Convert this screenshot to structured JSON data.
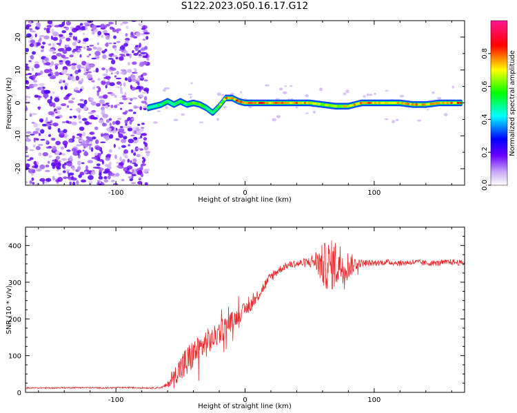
{
  "title": "S122.2023.050.16.17.G12",
  "chart_data": [
    {
      "type": "heatmap",
      "xlabel": "Height of straight line (km)",
      "ylabel": "Frequency (Hz)",
      "xlim": [
        -170,
        170
      ],
      "ylim": [
        -25,
        25
      ],
      "x_ticks": [
        -100,
        0,
        100
      ],
      "y_ticks": [
        -20,
        -10,
        0,
        10,
        20
      ],
      "grid": false,
      "colorbar": {
        "label": "Normalized spectral amplitude",
        "range": [
          0,
          1
        ],
        "ticks": [
          "0.0",
          "0.2",
          "0.4",
          "0.6",
          "0.8"
        ],
        "colors": [
          "#ffffff",
          "#8a2be2",
          "#0000ff",
          "#00ffff",
          "#00ff00",
          "#ffff00",
          "#ff0000",
          "#ff1493"
        ]
      },
      "noise_region_x": [
        -170,
        -75
      ],
      "ridge": {
        "x": [
          -75,
          -70,
          -65,
          -60,
          -55,
          -50,
          -45,
          -40,
          -35,
          -30,
          -25,
          -20,
          -15,
          -10,
          -5,
          0,
          10,
          20,
          30,
          40,
          50,
          60,
          70,
          80,
          90,
          100,
          110,
          120,
          130,
          140,
          150,
          160,
          168
        ],
        "y": [
          -1.5,
          -1,
          -0.5,
          0.5,
          -0.5,
          0.5,
          -0.5,
          0,
          -0.5,
          -1.5,
          -3,
          -1,
          1.5,
          1.5,
          0.5,
          0,
          0,
          0,
          0,
          0,
          0,
          -0.5,
          -1,
          -1,
          0,
          0,
          0,
          0,
          -0.5,
          -0.5,
          0,
          0,
          0
        ],
        "amp": [
          0.45,
          0.5,
          0.5,
          0.55,
          0.5,
          0.55,
          0.5,
          0.7,
          0.6,
          0.5,
          0.45,
          0.6,
          0.8,
          0.85,
          0.8,
          0.85,
          0.85,
          0.8,
          0.85,
          0.8,
          0.75,
          0.7,
          0.65,
          0.75,
          0.8,
          0.8,
          0.7,
          0.75,
          0.8,
          0.75,
          0.75,
          0.8,
          0.85
        ]
      }
    },
    {
      "type": "line",
      "xlabel": "Height of straight line (km)",
      "ylabel": "SNR (10 * v/v)",
      "xlim": [
        -170,
        170
      ],
      "ylim": [
        0,
        450
      ],
      "x_ticks": [
        -100,
        0,
        100
      ],
      "y_ticks": [
        0,
        100,
        200,
        300,
        400
      ],
      "grid": false,
      "series": [
        {
          "color": "#e8282a",
          "x": [
            -170,
            -150,
            -130,
            -110,
            -90,
            -75,
            -65,
            -60,
            -55,
            -50,
            -45,
            -40,
            -35,
            -30,
            -25,
            -20,
            -15,
            -10,
            -5,
            0,
            5,
            10,
            15,
            20,
            25,
            30,
            35,
            40,
            45,
            50,
            55,
            60,
            65,
            70,
            75,
            80,
            85,
            90,
            100,
            110,
            120,
            130,
            140,
            150,
            160,
            170
          ],
          "y": [
            12,
            12,
            13,
            12,
            13,
            12,
            13,
            20,
            45,
            65,
            80,
            105,
            120,
            135,
            145,
            165,
            180,
            195,
            210,
            225,
            240,
            265,
            290,
            315,
            330,
            342,
            348,
            350,
            352,
            355,
            358,
            345,
            345,
            348,
            350,
            345,
            350,
            352,
            352,
            355,
            352,
            355,
            352,
            352,
            355,
            352
          ],
          "noise": [
            2,
            2,
            2,
            2,
            2,
            2,
            2,
            8,
            20,
            40,
            50,
            40,
            35,
            40,
            30,
            35,
            30,
            25,
            22,
            20,
            18,
            18,
            15,
            15,
            12,
            10,
            10,
            10,
            12,
            15,
            30,
            60,
            70,
            70,
            55,
            40,
            20,
            10,
            8,
            8,
            8,
            8,
            8,
            8,
            8,
            8
          ]
        }
      ]
    }
  ]
}
